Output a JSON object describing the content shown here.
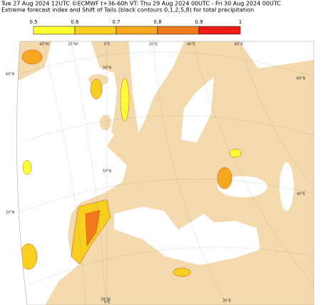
{
  "header": {
    "line1": "Tue 27 Aug 2024 12UTC ©ECMWF t+36-60h  VT: Thu 29 Aug 2024 00UTC - Fri 30 Aug 2024 00UTC",
    "line2": "Extreme forecast index and Shift of Tails (black contours 0,1,2,5,8) for total precipitation"
  },
  "colorbar": {
    "ticks": [
      0.5,
      0.6,
      0.7,
      0.8,
      0.9,
      1
    ],
    "colors": [
      "#ffff33",
      "#f8cf1e",
      "#f6a81f",
      "#f37a1c",
      "#ee1c14"
    ]
  },
  "map": {
    "labels": [
      "40°W",
      "20°W",
      "0°E",
      "20°E",
      "40°E",
      "60°E",
      "40°N",
      "20°N",
      "60°N",
      "40°E",
      "30°N",
      "50°N",
      "30°W",
      "0°E",
      "20°E"
    ]
  }
}
